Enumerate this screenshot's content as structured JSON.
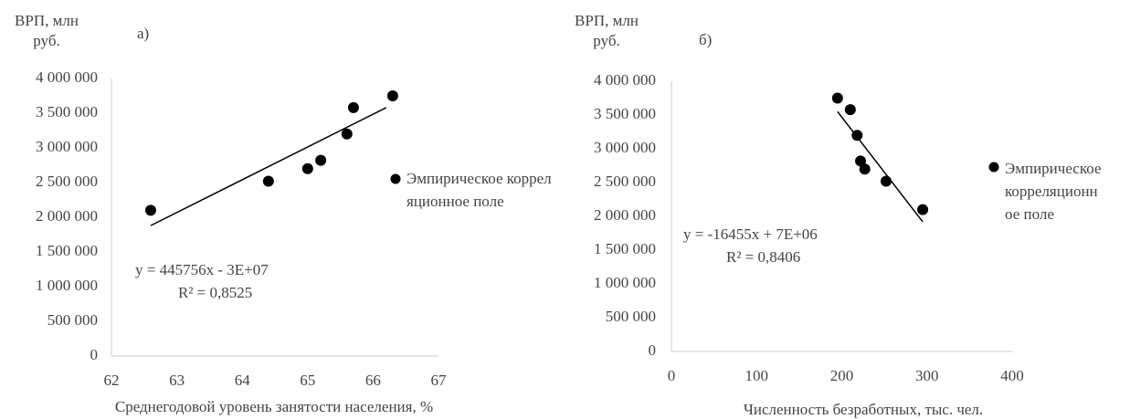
{
  "chart_data": [
    {
      "type": "scatter",
      "panel_label": "а)",
      "y_label": "ВРП, млн руб.",
      "x_label": "Среднегодовой уровень занятости населения, %",
      "xlim": [
        62,
        67
      ],
      "xticks": [
        62,
        63,
        64,
        65,
        66,
        67
      ],
      "ylim": [
        0,
        4000000
      ],
      "yticks": [
        {
          "value": 0,
          "label": "0"
        },
        {
          "value": 500000,
          "label": "500 000"
        },
        {
          "value": 1000000,
          "label": "1 000 000"
        },
        {
          "value": 1500000,
          "label": "1 500 000"
        },
        {
          "value": 2000000,
          "label": "2 000 000"
        },
        {
          "value": 2500000,
          "label": "2 500 000"
        },
        {
          "value": 3000000,
          "label": "3 000 000"
        },
        {
          "value": 3500000,
          "label": "3 500 000"
        },
        {
          "value": 4000000,
          "label": "4 000 000"
        }
      ],
      "series": [
        {
          "name": "Эмпирическое корреляционное поле",
          "color": "#000000",
          "x": [
            62.6,
            64.4,
            65.0,
            65.2,
            65.6,
            65.7,
            66.3
          ],
          "values": [
            2100000,
            2520000,
            2700000,
            2820000,
            3200000,
            3580000,
            3750000
          ]
        }
      ],
      "trendline": {
        "x": [
          62.6,
          66.2
        ],
        "values": [
          1880000,
          3580000
        ],
        "color": "#000000"
      },
      "equation": "y = 445756x - 3E+07",
      "r_squared": "R² = 0,8525"
    },
    {
      "type": "scatter",
      "panel_label": "б)",
      "y_label": "ВРП, млн руб.",
      "x_label": "Численность безработных, тыс. чел.",
      "xlim": [
        0,
        400
      ],
      "xticks": [
        0,
        100,
        200,
        300,
        400
      ],
      "ylim": [
        0,
        4000000
      ],
      "yticks": [
        {
          "value": 0,
          "label": "0"
        },
        {
          "value": 500000,
          "label": "500 000"
        },
        {
          "value": 1000000,
          "label": "1 000 000"
        },
        {
          "value": 1500000,
          "label": "1 500 000"
        },
        {
          "value": 2000000,
          "label": "2 000 000"
        },
        {
          "value": 2500000,
          "label": "2 500 000"
        },
        {
          "value": 3000000,
          "label": "3 000 000"
        },
        {
          "value": 3500000,
          "label": "3 500 000"
        },
        {
          "value": 4000000,
          "label": "4 000 000"
        }
      ],
      "series": [
        {
          "name": "Эмпирическое корреляционное поле",
          "color": "#000000",
          "x": [
            195,
            210,
            218,
            222,
            227,
            252,
            295
          ],
          "values": [
            3750000,
            3580000,
            3200000,
            2820000,
            2700000,
            2520000,
            2100000
          ]
        }
      ],
      "trendline": {
        "x": [
          195,
          295
        ],
        "values": [
          3550000,
          1920000
        ],
        "color": "#000000"
      },
      "equation": "y = -16455x + 7E+06",
      "r_squared": "R² = 0,8406"
    }
  ]
}
